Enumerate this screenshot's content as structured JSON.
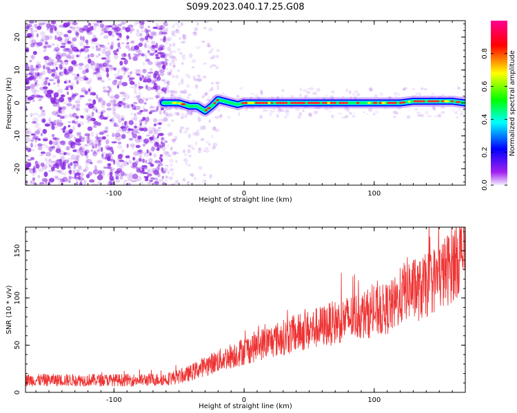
{
  "title": "S099.2023.040.17.25.G08",
  "colors": {
    "snr_line": "#ee3333",
    "scatter": "#8a2be2",
    "track_outer": "#0000ff",
    "track_inner": "#00ff66",
    "track_peak": "#ff2a2a"
  },
  "chart_data": [
    {
      "type": "heatmap",
      "title": "S099.2023.040.17.25.G08",
      "xlabel": "Height of straight line (km)",
      "ylabel": "Frequency (Hz)",
      "xlim": [
        -168,
        170
      ],
      "ylim": [
        -25,
        25
      ],
      "x_ticks": [
        -100,
        0,
        100
      ],
      "y_ticks": [
        -20,
        -10,
        0,
        10,
        20
      ],
      "noise_region": {
        "x": [
          -168,
          -60
        ],
        "y": [
          -25,
          25
        ]
      },
      "track": {
        "x": [
          -62,
          -50,
          -42,
          -36,
          -30,
          -25,
          -20,
          -15,
          -10,
          -5,
          0,
          20,
          40,
          60,
          80,
          100,
          120,
          130,
          140,
          150,
          160,
          170
        ],
        "y": [
          0,
          0,
          -1,
          -1,
          -2.5,
          -1,
          1,
          0.5,
          0,
          -0.5,
          0,
          0,
          0,
          0,
          0,
          0,
          0,
          0.5,
          0.5,
          0.5,
          0.5,
          0
        ]
      },
      "colorbar": {
        "label": "Normalized spectral amplitude",
        "range": [
          0,
          1
        ],
        "ticks": [
          0.0,
          0.2,
          0.4,
          0.6,
          0.8
        ],
        "tick_labels": [
          "0.0",
          "0.2",
          "0.4",
          "0.6",
          "0.8"
        ],
        "colormap": [
          "#f4eeff",
          "#a020f0",
          "#0000ff",
          "#00ffff",
          "#00ff00",
          "#ffff00",
          "#ff0000",
          "#ff0090"
        ]
      }
    },
    {
      "type": "line",
      "xlabel": "Height of straight line (km)",
      "ylabel": "SNR (10 * v/v)",
      "xlim": [
        -168,
        170
      ],
      "ylim": [
        0,
        175
      ],
      "x_ticks": [
        -100,
        0,
        100
      ],
      "y_ticks": [
        0,
        50,
        100,
        150
      ],
      "series": [
        {
          "x": [
            -168,
            -140,
            -110,
            -80,
            -60,
            -45,
            -30,
            -15,
            0,
            15,
            30,
            45,
            60,
            75,
            90,
            105,
            115,
            125,
            135,
            145,
            155,
            165,
            170
          ],
          "y": [
            13,
            13,
            13,
            13,
            14,
            18,
            28,
            36,
            44,
            52,
            58,
            64,
            70,
            76,
            82,
            86,
            92,
            110,
            108,
            118,
            128,
            145,
            150
          ]
        }
      ]
    }
  ]
}
